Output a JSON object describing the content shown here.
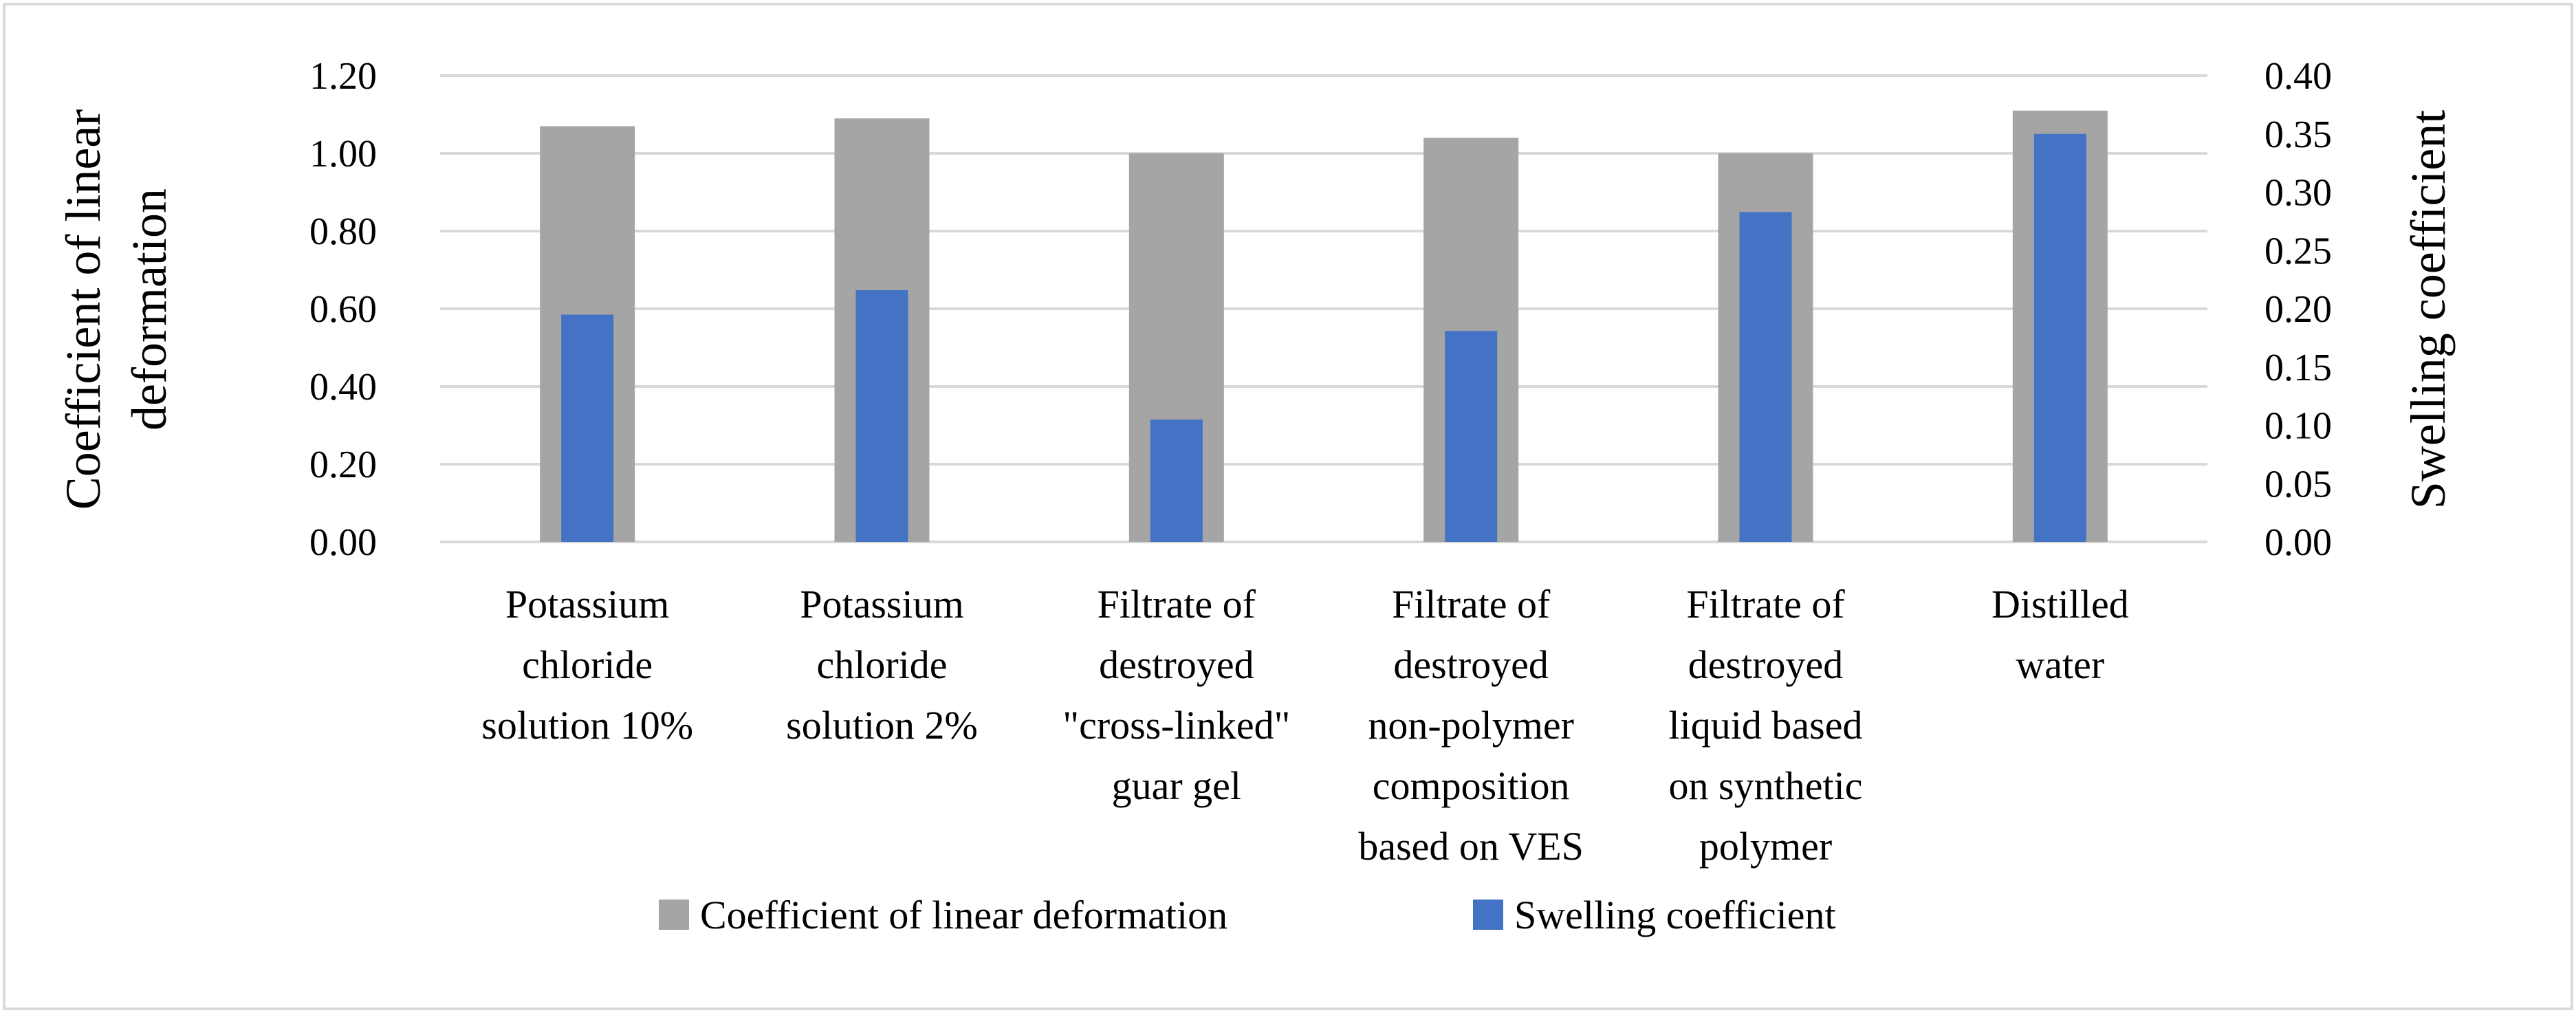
{
  "chart_data": {
    "type": "bar",
    "title": "",
    "categories": [
      [
        "Potassium",
        "chloride",
        "solution 10%"
      ],
      [
        "Potassium",
        "chloride",
        "solution 2%"
      ],
      [
        "Filtrate of",
        "destroyed",
        "\"cross-linked\"",
        "guar gel"
      ],
      [
        "Filtrate of",
        "destroyed",
        "non-polymer",
        "composition",
        "based on VES"
      ],
      [
        "Filtrate of",
        "destroyed",
        "liquid based",
        "on synthetic",
        "polymer"
      ],
      [
        "Distilled",
        "water"
      ]
    ],
    "series": [
      {
        "name": "Coefficient of linear deformation",
        "axis": "left",
        "color": "#a5a5a5",
        "values": [
          1.07,
          1.09,
          1.0,
          1.04,
          1.0,
          1.11
        ]
      },
      {
        "name": "Swelling coefficient",
        "axis": "right",
        "color": "#4472c4",
        "values": [
          0.195,
          0.216,
          0.105,
          0.181,
          0.283,
          0.35
        ]
      }
    ],
    "ylabel": [
      "Coefficient of linear",
      "deformation"
    ],
    "y2label": "Swelling coefficient",
    "ylim": [
      0,
      1.2
    ],
    "y2lim": [
      0,
      0.4
    ],
    "yticks": [
      "0.00",
      "0.20",
      "0.40",
      "0.60",
      "0.80",
      "1.00",
      "1.20"
    ],
    "y2ticks": [
      "0.00",
      "0.05",
      "0.10",
      "0.15",
      "0.20",
      "0.25",
      "0.30",
      "0.35",
      "0.40"
    ],
    "grid": true,
    "legend": "bottom"
  }
}
